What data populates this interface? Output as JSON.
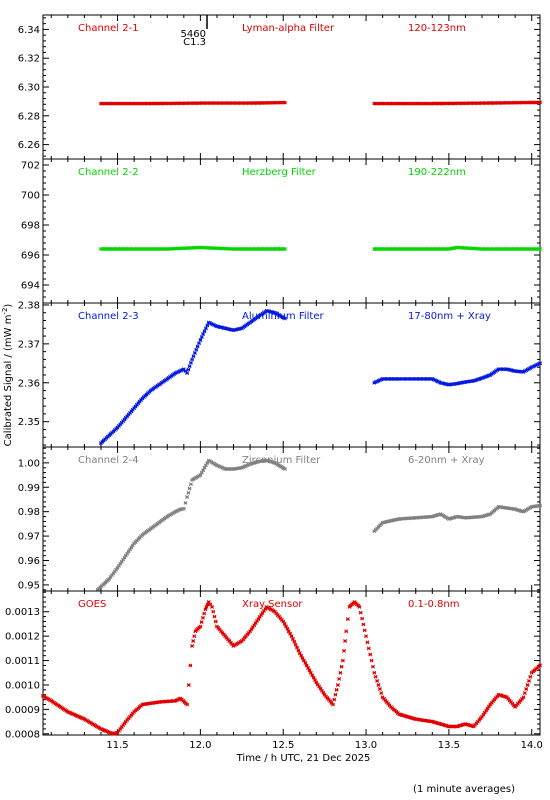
{
  "chart_data": {
    "type": "scatter",
    "x_label": "Time / h UTC, 21 Dec 2025",
    "y_label": "Calibrated Signal / (mW m^-2)",
    "footnote": "(1 minute averages)",
    "x_range": [
      11.05,
      14.05
    ],
    "x_ticks": [
      "11.5",
      "12.0",
      "12.5",
      "13.0",
      "13.5",
      "14.0"
    ],
    "annotation": {
      "lines": [
        "5460",
        "C1.3"
      ],
      "x": 12.04
    },
    "panels": [
      {
        "channel": "Channel 2-1",
        "filter": "Lyman-alpha Filter",
        "band": "120-123nm",
        "color": "#e00000",
        "y_range": [
          6.25,
          6.35
        ],
        "y_ticks": [
          "6.26",
          "6.28",
          "6.30",
          "6.32",
          "6.34"
        ],
        "segments": [
          {
            "points": [
              [
                11.4,
                6.2885
              ],
              [
                11.7,
                6.2885
              ],
              [
                12.0,
                6.2888
              ],
              [
                12.3,
                6.2888
              ],
              [
                12.51,
                6.2892
              ]
            ]
          },
          {
            "points": [
              [
                13.05,
                6.2885
              ],
              [
                13.4,
                6.2885
              ],
              [
                13.7,
                6.2888
              ],
              [
                14.05,
                6.2893
              ]
            ]
          }
        ]
      },
      {
        "channel": "Channel 2-2",
        "filter": "Herzberg Filter",
        "band": "190-222nm",
        "color": "#00d800",
        "y_range": [
          692.8,
          702.4
        ],
        "y_ticks": [
          "694",
          "696",
          "698",
          "700",
          "702"
        ],
        "segments": [
          {
            "points": [
              [
                11.4,
                696.4
              ],
              [
                11.8,
                696.4
              ],
              [
                12.0,
                696.5
              ],
              [
                12.2,
                696.4
              ],
              [
                12.51,
                696.4
              ]
            ]
          },
          {
            "points": [
              [
                13.05,
                696.4
              ],
              [
                13.5,
                696.4
              ],
              [
                13.55,
                696.5
              ],
              [
                13.7,
                696.4
              ],
              [
                14.05,
                696.4
              ]
            ]
          }
        ]
      },
      {
        "channel": "Channel 2-3",
        "filter": "Aluminium Filter",
        "band": "17-80nm + Xray",
        "color": "#0018e0",
        "y_range": [
          2.3435,
          2.3805
        ],
        "y_ticks": [
          "2.35",
          "2.36",
          "2.37",
          "2.38"
        ],
        "segments": [
          {
            "points": [
              [
                11.4,
                2.3445
              ],
              [
                11.45,
                2.3465
              ],
              [
                11.5,
                2.3485
              ],
              [
                11.55,
                2.351
              ],
              [
                11.6,
                2.3535
              ],
              [
                11.65,
                2.356
              ],
              [
                11.7,
                2.358
              ],
              [
                11.75,
                2.3595
              ],
              [
                11.8,
                2.361
              ],
              [
                11.85,
                2.3625
              ],
              [
                11.9,
                2.3635
              ],
              [
                11.92,
                2.3625
              ],
              [
                11.95,
                2.366
              ],
              [
                12.0,
                2.371
              ],
              [
                12.05,
                2.3755
              ],
              [
                12.1,
                2.3745
              ],
              [
                12.15,
                2.374
              ],
              [
                12.2,
                2.3735
              ],
              [
                12.25,
                2.374
              ],
              [
                12.3,
                2.3755
              ],
              [
                12.35,
                2.377
              ],
              [
                12.4,
                2.3785
              ],
              [
                12.45,
                2.378
              ],
              [
                12.51,
                2.3765
              ]
            ]
          },
          {
            "points": [
              [
                13.05,
                2.36
              ],
              [
                13.1,
                2.361
              ],
              [
                13.2,
                2.361
              ],
              [
                13.3,
                2.361
              ],
              [
                13.4,
                2.361
              ],
              [
                13.45,
                2.36
              ],
              [
                13.5,
                2.3595
              ],
              [
                13.55,
                2.3598
              ],
              [
                13.6,
                2.3602
              ],
              [
                13.65,
                2.3605
              ],
              [
                13.7,
                2.3612
              ],
              [
                13.75,
                2.362
              ],
              [
                13.8,
                2.3635
              ],
              [
                13.85,
                2.3635
              ],
              [
                13.9,
                2.363
              ],
              [
                13.95,
                2.3628
              ],
              [
                14.0,
                2.364
              ],
              [
                14.05,
                2.365
              ]
            ]
          }
        ]
      },
      {
        "channel": "Channel 2-4",
        "filter": "Zirconium Filter",
        "band": "6-20nm + Xray",
        "color": "#808080",
        "y_range": [
          0.9475,
          1.0065
        ],
        "y_ticks": [
          "0.95",
          "0.96",
          "0.97",
          "0.98",
          "0.99",
          "1.00"
        ],
        "segments": [
          {
            "points": [
              [
                11.38,
                0.948
              ],
              [
                11.42,
                0.9505
              ],
              [
                11.45,
                0.9525
              ],
              [
                11.5,
                0.957
              ],
              [
                11.55,
                0.962
              ],
              [
                11.6,
                0.967
              ],
              [
                11.65,
                0.9705
              ],
              [
                11.7,
                0.973
              ],
              [
                11.75,
                0.9755
              ],
              [
                11.8,
                0.978
              ],
              [
                11.85,
                0.98
              ],
              [
                11.88,
                0.981
              ],
              [
                11.9,
                0.9812
              ],
              [
                11.92,
                0.986
              ],
              [
                11.95,
                0.993
              ],
              [
                12.0,
                0.995
              ],
              [
                12.05,
                1.001
              ],
              [
                12.1,
                0.999
              ],
              [
                12.15,
                0.9975
              ],
              [
                12.2,
                0.9975
              ],
              [
                12.25,
                0.998
              ],
              [
                12.3,
                0.9995
              ],
              [
                12.35,
                1.0005
              ],
              [
                12.4,
                1.001
              ],
              [
                12.45,
                1.0
              ],
              [
                12.51,
                0.9975
              ]
            ]
          },
          {
            "points": [
              [
                13.05,
                0.972
              ],
              [
                13.1,
                0.9755
              ],
              [
                13.2,
                0.977
              ],
              [
                13.3,
                0.9775
              ],
              [
                13.4,
                0.978
              ],
              [
                13.45,
                0.979
              ],
              [
                13.5,
                0.977
              ],
              [
                13.55,
                0.978
              ],
              [
                13.6,
                0.9775
              ],
              [
                13.7,
                0.978
              ],
              [
                13.75,
                0.979
              ],
              [
                13.8,
                0.982
              ],
              [
                13.85,
                0.9815
              ],
              [
                13.9,
                0.981
              ],
              [
                13.95,
                0.98
              ],
              [
                14.0,
                0.982
              ],
              [
                14.05,
                0.9825
              ]
            ]
          }
        ]
      },
      {
        "channel": "GOES",
        "filter": "Xray Sensor",
        "band": "0.1-0.8nm",
        "color": "#e00000",
        "y_range": [
          0.000795,
          0.001385
        ],
        "y_ticks": [
          "0.0008",
          "0.0009",
          "0.0010",
          "0.0011",
          "0.0012",
          "0.0013"
        ],
        "segments": [
          {
            "points": [
              [
                11.05,
                0.000955
              ],
              [
                11.1,
                0.000935
              ],
              [
                11.2,
                0.00089
              ],
              [
                11.3,
                0.00086
              ],
              [
                11.4,
                0.00082
              ],
              [
                11.47,
                0.0008
              ],
              [
                11.5,
                0.000805
              ],
              [
                11.55,
                0.00085
              ],
              [
                11.6,
                0.00089
              ],
              [
                11.65,
                0.00092
              ],
              [
                11.75,
                0.00093
              ],
              [
                11.85,
                0.000935
              ],
              [
                11.88,
                0.000945
              ],
              [
                11.92,
                0.00092
              ],
              [
                11.93,
                0.001
              ],
              [
                11.95,
                0.00116
              ],
              [
                11.97,
                0.00122
              ],
              [
                12.0,
                0.00124
              ],
              [
                12.03,
                0.00131
              ],
              [
                12.05,
                0.00134
              ],
              [
                12.07,
                0.00132
              ],
              [
                12.1,
                0.00124
              ],
              [
                12.15,
                0.0012
              ],
              [
                12.2,
                0.00116
              ],
              [
                12.25,
                0.00118
              ],
              [
                12.3,
                0.00122
              ],
              [
                12.35,
                0.00127
              ],
              [
                12.4,
                0.00132
              ],
              [
                12.45,
                0.0013
              ],
              [
                12.5,
                0.00126
              ],
              [
                12.55,
                0.0012
              ],
              [
                12.6,
                0.00113
              ],
              [
                12.65,
                0.00107
              ],
              [
                12.7,
                0.00101
              ],
              [
                12.75,
                0.00096
              ],
              [
                12.8,
                0.00092
              ],
              [
                12.83,
                0.001
              ],
              [
                12.86,
                0.0011
              ],
              [
                12.88,
                0.00122
              ],
              [
                12.9,
                0.00132
              ],
              [
                12.93,
                0.00134
              ],
              [
                12.96,
                0.00132
              ],
              [
                13.0,
                0.0012
              ],
              [
                13.05,
                0.00105
              ],
              [
                13.1,
                0.00095
              ],
              [
                13.15,
                0.00091
              ],
              [
                13.2,
                0.00088
              ],
              [
                13.3,
                0.00086
              ],
              [
                13.4,
                0.00085
              ],
              [
                13.45,
                0.00084
              ],
              [
                13.5,
                0.00083
              ],
              [
                13.55,
                0.00083
              ],
              [
                13.6,
                0.00084
              ],
              [
                13.65,
                0.00083
              ],
              [
                13.7,
                0.00087
              ],
              [
                13.75,
                0.00092
              ],
              [
                13.8,
                0.00096
              ],
              [
                13.85,
                0.00095
              ],
              [
                13.9,
                0.00091
              ],
              [
                13.95,
                0.00095
              ],
              [
                14.0,
                0.00105
              ],
              [
                14.05,
                0.00108
              ]
            ]
          }
        ]
      }
    ]
  }
}
